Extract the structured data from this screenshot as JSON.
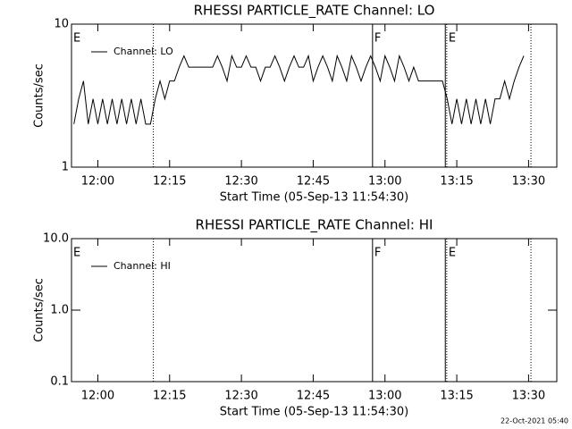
{
  "chart_data": [
    {
      "type": "line",
      "title": "RHESSI PARTICLE_RATE Channel: LO",
      "xlabel": "Start Time (05-Sep-13 11:54:30)",
      "ylabel": "Counts/sec",
      "log_y": true,
      "legend": "upper left",
      "xlim": [
        714.5,
        815.9
      ],
      "ylim": [
        1,
        10
      ],
      "xticks": [
        {
          "value": 720,
          "label": "12:00"
        },
        {
          "value": 735,
          "label": "12:15"
        },
        {
          "value": 750,
          "label": "12:30"
        },
        {
          "value": 765,
          "label": "12:45"
        },
        {
          "value": 780,
          "label": "13:00"
        },
        {
          "value": 795,
          "label": "13:15"
        },
        {
          "value": 810,
          "label": "13:30"
        }
      ],
      "yticks": [
        1,
        10
      ],
      "markers": [
        {
          "x": 731.6,
          "style": "dotted"
        },
        {
          "x": 777.4,
          "style": "solid"
        },
        {
          "x": 792.6,
          "style": "solid"
        },
        {
          "x": 792.9,
          "style": "dotted"
        },
        {
          "x": 810.5,
          "style": "dotted"
        }
      ],
      "flags": [
        {
          "x": 714.5,
          "label": "E"
        },
        {
          "x": 777.4,
          "label": "F"
        },
        {
          "x": 792.9,
          "label": "E"
        }
      ],
      "x": [
        715,
        716,
        717,
        718,
        719,
        720,
        721,
        722,
        723,
        724,
        725,
        726,
        727,
        728,
        729,
        730,
        731,
        732,
        733,
        734,
        735,
        736,
        737,
        738,
        739,
        740,
        741,
        742,
        743,
        744,
        745,
        746,
        747,
        748,
        749,
        750,
        751,
        752,
        753,
        754,
        755,
        756,
        757,
        758,
        759,
        760,
        761,
        762,
        763,
        764,
        765,
        766,
        767,
        768,
        769,
        770,
        771,
        772,
        773,
        774,
        775,
        776,
        777,
        778,
        779,
        780,
        781,
        782,
        783,
        784,
        785,
        786,
        787,
        788,
        789,
        790,
        791,
        792,
        793,
        794,
        795,
        796,
        797,
        798,
        799,
        800,
        801,
        802,
        803,
        804,
        805,
        806,
        807,
        808,
        809
      ],
      "series": [
        {
          "name": "Channel: LO",
          "color": "#000000",
          "values": [
            2,
            3,
            4,
            2,
            3,
            2,
            3,
            2,
            3,
            2,
            3,
            2,
            3,
            2,
            3,
            2,
            2,
            3,
            4,
            3,
            4,
            4,
            5,
            6,
            5,
            5,
            5,
            5,
            5,
            5,
            6,
            5,
            4,
            6,
            5,
            5,
            6,
            5,
            5,
            4,
            5,
            5,
            6,
            5,
            4,
            5,
            6,
            5,
            5,
            6,
            4,
            5,
            6,
            5,
            4,
            6,
            5,
            4,
            6,
            5,
            4,
            5,
            6,
            5,
            4,
            6,
            5,
            4,
            6,
            5,
            4,
            5,
            4,
            4,
            4,
            4,
            4,
            4,
            3,
            2,
            3,
            2,
            3,
            2,
            3,
            2,
            3,
            2,
            3,
            3,
            4,
            3,
            4,
            5,
            6
          ]
        }
      ]
    },
    {
      "type": "line",
      "title": "RHESSI PARTICLE_RATE Channel: HI",
      "xlabel": "Start Time (05-Sep-13 11:54:30)",
      "ylabel": "Counts/sec",
      "log_y": true,
      "legend": "upper left",
      "xlim": [
        714.5,
        815.9
      ],
      "ylim": [
        0.1,
        10
      ],
      "xticks": [
        {
          "value": 720,
          "label": "12:00"
        },
        {
          "value": 735,
          "label": "12:15"
        },
        {
          "value": 750,
          "label": "12:30"
        },
        {
          "value": 765,
          "label": "12:45"
        },
        {
          "value": 780,
          "label": "13:00"
        },
        {
          "value": 795,
          "label": "13:15"
        },
        {
          "value": 810,
          "label": "13:30"
        }
      ],
      "yticks": [
        0.1,
        {
          "value": 1,
          "label": "1.0"
        },
        {
          "value": 10,
          "label": "10.0"
        }
      ],
      "markers": [
        {
          "x": 731.6,
          "style": "dotted"
        },
        {
          "x": 777.4,
          "style": "solid"
        },
        {
          "x": 792.6,
          "style": "solid"
        },
        {
          "x": 792.9,
          "style": "dotted"
        },
        {
          "x": 810.5,
          "style": "dotted"
        }
      ],
      "flags": [
        {
          "x": 714.5,
          "label": "E"
        },
        {
          "x": 777.4,
          "label": "F"
        },
        {
          "x": 792.9,
          "label": "E"
        }
      ],
      "x": [],
      "series": [
        {
          "name": "Channel: HI",
          "color": "#000000",
          "values": []
        }
      ]
    }
  ],
  "footer": "22-Oct-2021 05:40"
}
